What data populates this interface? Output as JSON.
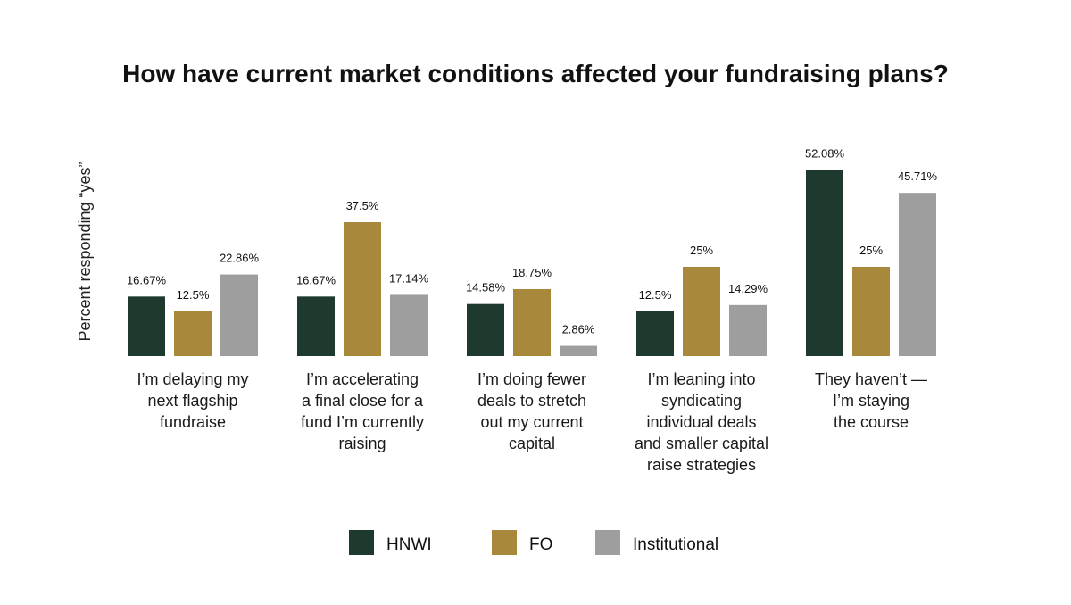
{
  "chart_data": {
    "type": "bar",
    "title": "How have current market conditions affected your fundraising plans?",
    "xlabel": "",
    "ylabel": "Percent responding “yes”",
    "ylim": [
      0,
      55
    ],
    "grid": false,
    "legend_position": "bottom",
    "categories": [
      [
        "I’m delaying my",
        "next flagship",
        "fundraise"
      ],
      [
        "I’m accelerating",
        "a final close for a",
        "fund I’m currently",
        "raising"
      ],
      [
        "I’m doing fewer",
        "deals to stretch",
        "out my current",
        "capital"
      ],
      [
        "I’m leaning into",
        "syndicating",
        "individual deals",
        "and smaller capital",
        "raise strategies"
      ],
      [
        "They haven’t —",
        "I’m staying",
        "the course"
      ]
    ],
    "series": [
      {
        "name": "HNWI",
        "color": "#1e3a2f",
        "values": [
          16.67,
          16.67,
          14.58,
          12.5,
          52.08
        ],
        "labels": [
          "16.67%",
          "16.67%",
          "14.58%",
          "12.5%",
          "52.08%"
        ]
      },
      {
        "name": "FO",
        "color": "#a8893c",
        "values": [
          12.5,
          37.5,
          18.75,
          25,
          25
        ],
        "labels": [
          "12.5%",
          "37.5%",
          "18.75%",
          "25%",
          "25%"
        ]
      },
      {
        "name": "Institutional",
        "color": "#9e9e9e",
        "values": [
          22.86,
          17.14,
          2.86,
          14.29,
          45.71
        ],
        "labels": [
          "22.86%",
          "17.14%",
          "2.86%",
          "14.29%",
          "45.71%"
        ]
      }
    ]
  }
}
